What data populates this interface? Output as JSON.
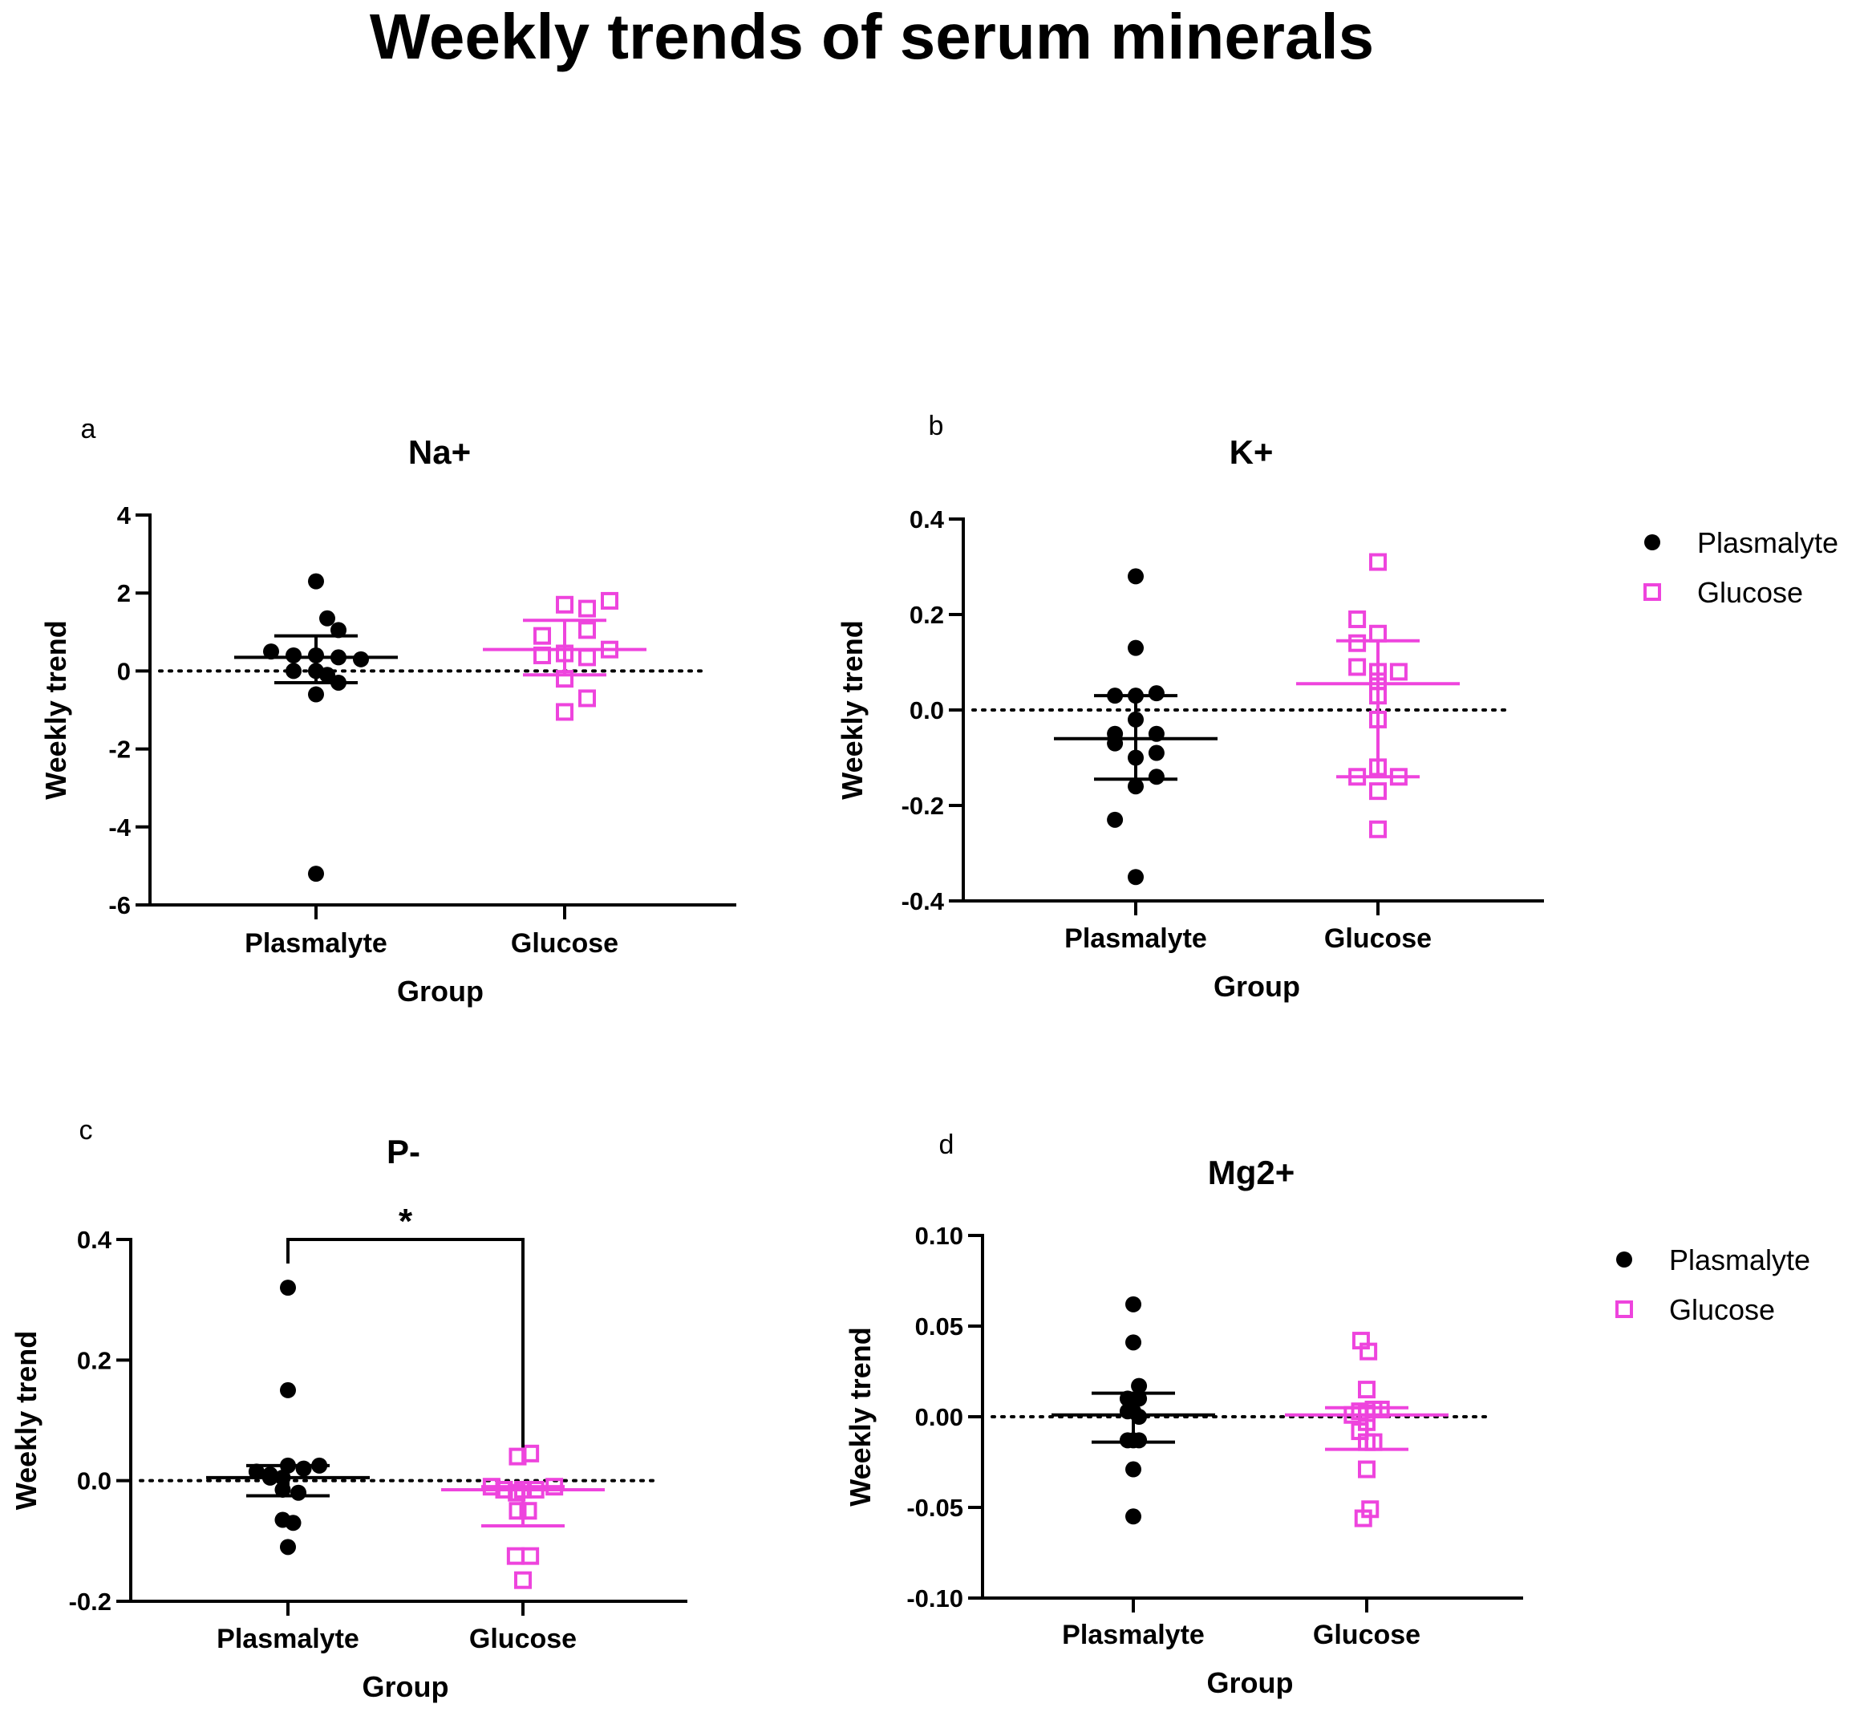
{
  "page_title": "Weekly trends of serum minerals",
  "colors": {
    "plasmalyte": "#000000",
    "glucose": "#ee44dd"
  },
  "legend": {
    "items": [
      {
        "label": "Plasmalyte",
        "marker": "filled-circle"
      },
      {
        "label": "Glucose",
        "marker": "open-square"
      }
    ]
  },
  "chart_data": [
    {
      "type": "scatter",
      "panel": "a",
      "title": "Na+",
      "xlabel": "Group",
      "ylabel": "Weekly trend",
      "categories": [
        "Plasmalyte",
        "Glucose"
      ],
      "ylim": [
        -6,
        4
      ],
      "yticks": [
        4,
        2,
        0,
        -2,
        -4,
        -6
      ],
      "ytick_labels": [
        "4",
        "2",
        "0",
        "-2",
        "-4",
        "-6"
      ],
      "reference_line": 0,
      "legend": false,
      "series": [
        {
          "name": "Plasmalyte",
          "points": [
            [
              0,
              2.3
            ],
            [
              0.05,
              1.35
            ],
            [
              -0.2,
              0.5
            ],
            [
              -0.1,
              0.4
            ],
            [
              0,
              0.4
            ],
            [
              0.1,
              0.35
            ],
            [
              0.2,
              0.3
            ],
            [
              0.1,
              1.05
            ],
            [
              -0.1,
              0
            ],
            [
              0,
              0
            ],
            [
              0.05,
              -0.1
            ],
            [
              0.1,
              -0.3
            ],
            [
              0,
              -0.6
            ],
            [
              0,
              -5.2
            ]
          ],
          "center": 0.35,
          "err_low": -0.3,
          "err_high": 0.9
        },
        {
          "name": "Glucose",
          "points": [
            [
              0,
              1.7
            ],
            [
              0.1,
              1.6
            ],
            [
              0.2,
              1.8
            ],
            [
              -0.1,
              0.9
            ],
            [
              0.1,
              1.05
            ],
            [
              -0.1,
              0.4
            ],
            [
              0,
              0.45
            ],
            [
              0.1,
              0.35
            ],
            [
              0.2,
              0.55
            ],
            [
              0,
              -0.2
            ],
            [
              0.1,
              -0.7
            ],
            [
              0,
              -1.05
            ]
          ],
          "center": 0.55,
          "err_low": -0.1,
          "err_high": 1.3
        }
      ]
    },
    {
      "type": "scatter",
      "panel": "b",
      "title": "K+",
      "xlabel": "Group",
      "ylabel": "Weekly trend",
      "categories": [
        "Plasmalyte",
        "Glucose"
      ],
      "ylim": [
        -0.4,
        0.4
      ],
      "yticks": [
        0.4,
        0.2,
        0.0,
        -0.2,
        -0.4
      ],
      "ytick_labels": [
        "0.4",
        "0.2",
        "0.0",
        "-0.2",
        "-0.4"
      ],
      "reference_line": 0,
      "legend": true,
      "series": [
        {
          "name": "Plasmalyte",
          "points": [
            [
              0,
              0.28
            ],
            [
              0,
              0.13
            ],
            [
              -0.1,
              0.03
            ],
            [
              0,
              0.03
            ],
            [
              0.1,
              0.035
            ],
            [
              0,
              -0.02
            ],
            [
              0.1,
              -0.05
            ],
            [
              -0.1,
              -0.05
            ],
            [
              -0.1,
              -0.07
            ],
            [
              0.1,
              -0.09
            ],
            [
              0,
              -0.1
            ],
            [
              0.1,
              -0.14
            ],
            [
              0,
              -0.16
            ],
            [
              -0.1,
              -0.23
            ],
            [
              0,
              -0.35
            ]
          ],
          "center": -0.06,
          "err_low": -0.145,
          "err_high": 0.03
        },
        {
          "name": "Glucose",
          "points": [
            [
              0,
              0.31
            ],
            [
              -0.1,
              0.19
            ],
            [
              0,
              0.16
            ],
            [
              -0.1,
              0.14
            ],
            [
              -0.1,
              0.09
            ],
            [
              0,
              0.08
            ],
            [
              0.1,
              0.08
            ],
            [
              0,
              0.06
            ],
            [
              0,
              0.03
            ],
            [
              0,
              -0.02
            ],
            [
              0,
              -0.12
            ],
            [
              -0.1,
              -0.14
            ],
            [
              0.1,
              -0.14
            ],
            [
              0,
              -0.17
            ],
            [
              0,
              -0.25
            ]
          ],
          "center": 0.055,
          "err_low": -0.14,
          "err_high": 0.145
        }
      ]
    },
    {
      "type": "scatter",
      "panel": "c",
      "title": "P-",
      "xlabel": "Group",
      "ylabel": "Weekly trend",
      "categories": [
        "Plasmalyte",
        "Glucose"
      ],
      "ylim": [
        -0.2,
        0.4
      ],
      "yticks": [
        0.4,
        0.2,
        0.0,
        -0.2
      ],
      "ytick_labels": [
        "0.4",
        "0.2",
        "0.0",
        "-0.2"
      ],
      "reference_line": 0,
      "legend": false,
      "significance": {
        "label": "*",
        "from": 0,
        "to": 1,
        "y": 0.4
      },
      "series": [
        {
          "name": "Plasmalyte",
          "points": [
            [
              0,
              0.32
            ],
            [
              0,
              0.15
            ],
            [
              -0.3,
              0.015
            ],
            [
              -0.17,
              0.01
            ],
            [
              -0.17,
              0.005
            ],
            [
              -0.05,
              0.005
            ],
            [
              0,
              0.025
            ],
            [
              0.15,
              0.02
            ],
            [
              0.3,
              0.025
            ],
            [
              -0.05,
              -0.015
            ],
            [
              0.1,
              -0.02
            ],
            [
              -0.05,
              -0.065
            ],
            [
              0.05,
              -0.07
            ],
            [
              0,
              -0.11
            ]
          ],
          "center": 0.005,
          "err_low": -0.025,
          "err_high": 0.025
        },
        {
          "name": "Glucose",
          "points": [
            [
              -0.05,
              0.04
            ],
            [
              0.07,
              0.045
            ],
            [
              -0.3,
              -0.01
            ],
            [
              -0.18,
              -0.015
            ],
            [
              -0.06,
              -0.02
            ],
            [
              0,
              -0.015
            ],
            [
              0.12,
              -0.015
            ],
            [
              0.3,
              -0.01
            ],
            [
              -0.05,
              -0.05
            ],
            [
              0.05,
              -0.05
            ],
            [
              -0.07,
              -0.125
            ],
            [
              0.07,
              -0.125
            ],
            [
              0,
              -0.165
            ]
          ],
          "center": -0.015,
          "err_low": -0.075,
          "err_high": -0.01
        }
      ]
    },
    {
      "type": "scatter",
      "panel": "d",
      "title": "Mg2+",
      "xlabel": "Group",
      "ylabel": "Weekly trend",
      "categories": [
        "Plasmalyte",
        "Glucose"
      ],
      "ylim": [
        -0.1,
        0.1
      ],
      "yticks": [
        0.1,
        0.05,
        0.0,
        -0.05,
        -0.1
      ],
      "ytick_labels": [
        "0.10",
        "0.05",
        "0.00",
        "-0.05",
        "-0.10"
      ],
      "reference_line": 0,
      "legend": true,
      "series": [
        {
          "name": "Plasmalyte",
          "points": [
            [
              0,
              0.062
            ],
            [
              0,
              0.041
            ],
            [
              0.1,
              0.017
            ],
            [
              -0.1,
              0.01
            ],
            [
              0.1,
              0.01
            ],
            [
              -0.1,
              0.003
            ],
            [
              0,
              0.003
            ],
            [
              0.1,
              0.0
            ],
            [
              -0.1,
              -0.013
            ],
            [
              0,
              -0.013
            ],
            [
              0.1,
              -0.013
            ],
            [
              0,
              -0.029
            ],
            [
              0,
              -0.055
            ]
          ],
          "center": 0.001,
          "err_low": -0.014,
          "err_high": 0.013
        },
        {
          "name": "Glucose",
          "points": [
            [
              -0.1,
              0.042
            ],
            [
              0.03,
              0.036
            ],
            [
              0,
              0.015
            ],
            [
              -0.25,
              0.001
            ],
            [
              -0.12,
              0.003
            ],
            [
              0,
              0.002
            ],
            [
              0.12,
              0.004
            ],
            [
              0.25,
              0.004
            ],
            [
              -0.12,
              -0.008
            ],
            [
              0,
              -0.003
            ],
            [
              0.12,
              -0.014
            ],
            [
              0,
              -0.014
            ],
            [
              0,
              -0.029
            ],
            [
              -0.06,
              -0.056
            ],
            [
              0.06,
              -0.051
            ]
          ],
          "center": 0.001,
          "err_low": -0.018,
          "err_high": 0.005
        }
      ]
    }
  ]
}
